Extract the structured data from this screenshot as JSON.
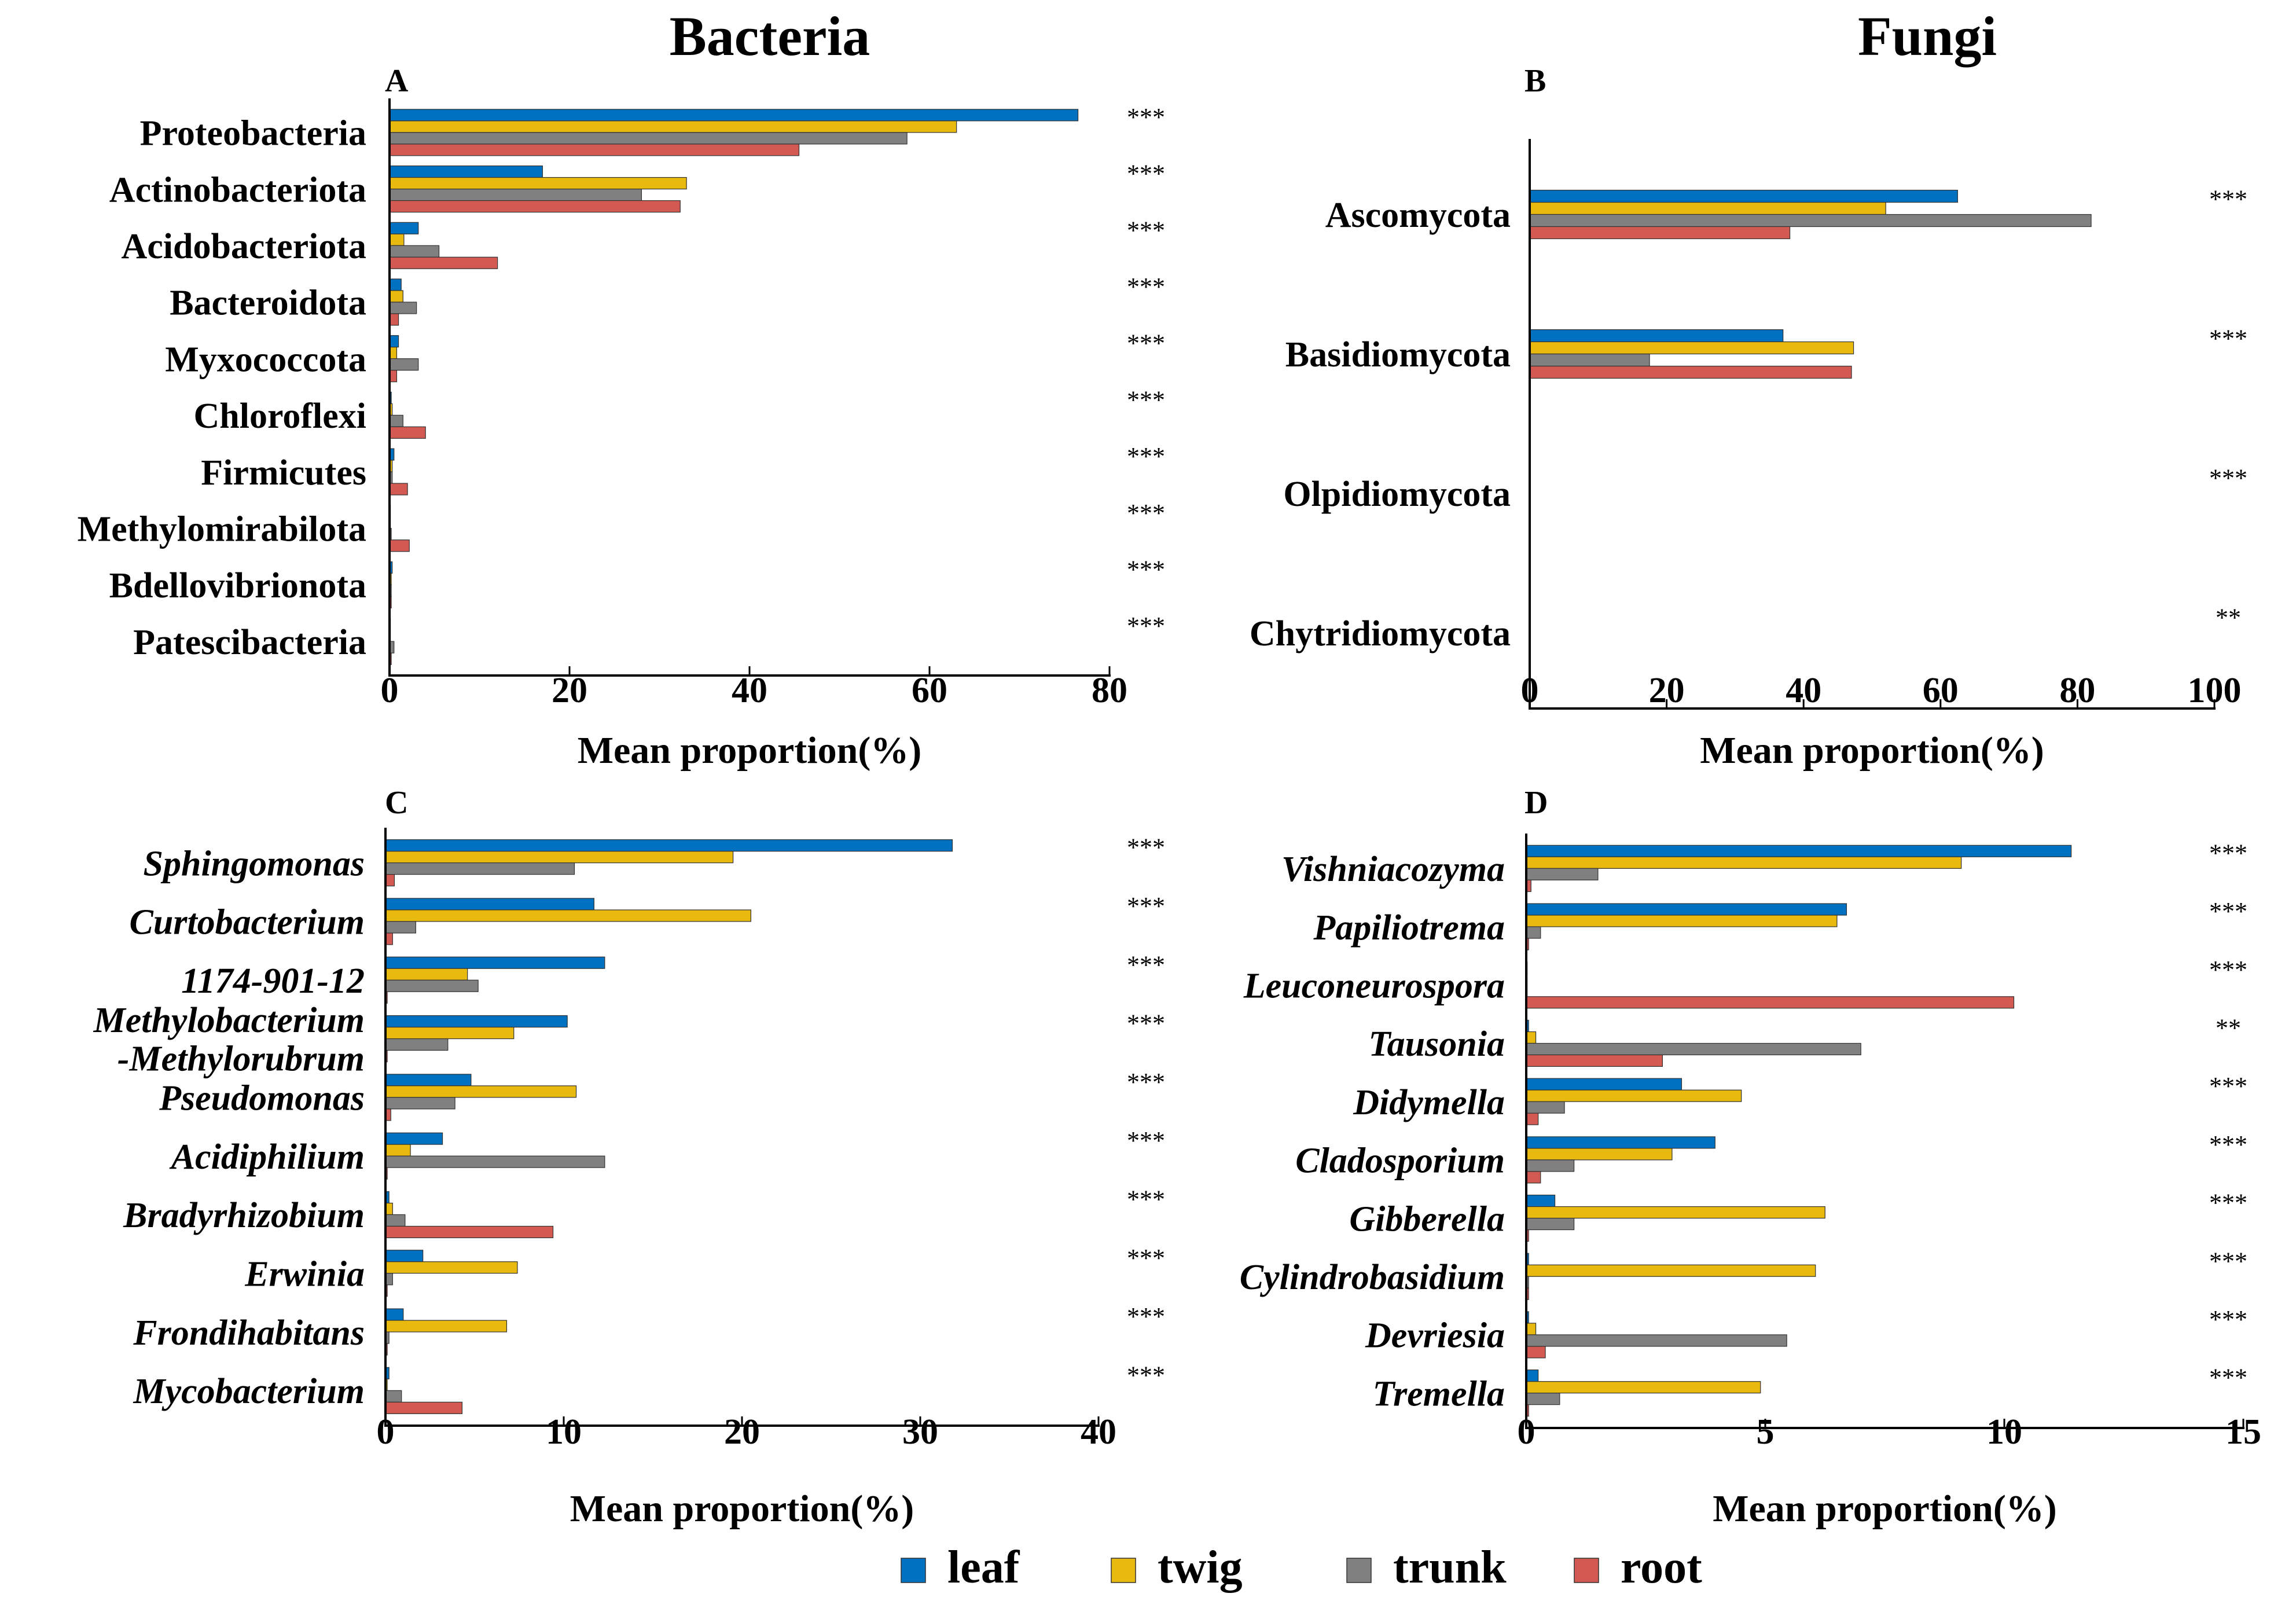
{
  "headers": {
    "bacteria": "Bacteria",
    "fungi": "Fungi"
  },
  "colors": {
    "leaf": "#0070C0",
    "twig": "#E8B90E",
    "trunk": "#808080",
    "root": "#D25A52"
  },
  "legend": [
    {
      "key": "leaf",
      "label": "leaf"
    },
    {
      "key": "twig",
      "label": "twig"
    },
    {
      "key": "trunk",
      "label": "trunk"
    },
    {
      "key": "root",
      "label": "root"
    }
  ],
  "chart_data": [
    {
      "panel": "A",
      "type": "bar",
      "orientation": "horizontal",
      "italic": false,
      "xlabel": "Mean proportion(%)",
      "xlim": [
        0,
        80
      ],
      "xticks": [
        0,
        20,
        40,
        60,
        80
      ],
      "categories": [
        "Proteobacteria",
        "Actinobacteriota",
        "Acidobacteriota",
        "Bacteroidota",
        "Myxococcota",
        "Chloroflexi",
        "Firmicutes",
        "Methylomirabilota",
        "Bdellovibrionota",
        "Patescibacteria"
      ],
      "significance": [
        "***",
        "***",
        "***",
        "***",
        "***",
        "***",
        "***",
        "***",
        "***",
        "***"
      ],
      "series": [
        {
          "name": "leaf",
          "values": [
            76.5,
            17,
            3.2,
            1.3,
            1,
            0.2,
            0.5,
            0.1,
            0.3,
            0.1
          ]
        },
        {
          "name": "twig",
          "values": [
            63,
            33,
            1.6,
            1.5,
            0.8,
            0.3,
            0.3,
            0.1,
            0.2,
            0.1
          ]
        },
        {
          "name": "trunk",
          "values": [
            57.5,
            28,
            5.5,
            3,
            3.2,
            1.5,
            0.3,
            0.2,
            0.2,
            0.5
          ]
        },
        {
          "name": "root",
          "values": [
            45.5,
            32.3,
            12,
            1,
            0.8,
            4,
            2,
            2.2,
            0.2,
            0.2
          ]
        }
      ]
    },
    {
      "panel": "B",
      "type": "bar",
      "orientation": "horizontal",
      "italic": false,
      "xlabel": "Mean proportion(%)",
      "xlim": [
        0,
        100
      ],
      "xticks": [
        0,
        20,
        40,
        60,
        80,
        100
      ],
      "categories": [
        "Ascomycota",
        "Basidiomycota",
        "Olpidiomycota",
        "Chytridiomycota"
      ],
      "significance": [
        "***",
        "***",
        "***",
        "**"
      ],
      "series": [
        {
          "name": "leaf",
          "values": [
            62.5,
            37,
            0,
            0
          ]
        },
        {
          "name": "twig",
          "values": [
            52,
            47.3,
            0,
            0
          ]
        },
        {
          "name": "trunk",
          "values": [
            82,
            17.5,
            0,
            0
          ]
        },
        {
          "name": "root",
          "values": [
            38,
            47,
            0,
            0
          ]
        }
      ]
    },
    {
      "panel": "C",
      "type": "bar",
      "orientation": "horizontal",
      "italic": true,
      "xlabel": "Mean proportion(%)",
      "xlim": [
        0,
        40
      ],
      "xticks": [
        0,
        10,
        20,
        30,
        40
      ],
      "categories": [
        "Sphingomonas",
        "Curtobacterium",
        "1174-901-12",
        "Methylobacterium|-Methylorubrum",
        "Pseudomonas",
        "Acidiphilium",
        "Bradyrhizobium",
        "Erwinia",
        "Frondihabitans",
        "Mycobacterium"
      ],
      "significance": [
        "***",
        "***",
        "***",
        "***",
        "***",
        "***",
        "***",
        "***",
        "***",
        "***"
      ],
      "series": [
        {
          "name": "leaf",
          "values": [
            31.8,
            11.7,
            12.3,
            10.2,
            4.8,
            3.2,
            0.2,
            2.1,
            1,
            0.2
          ]
        },
        {
          "name": "twig",
          "values": [
            19.5,
            20.5,
            4.6,
            7.2,
            10.7,
            1.4,
            0.4,
            7.4,
            6.8,
            0.1
          ]
        },
        {
          "name": "trunk",
          "values": [
            10.6,
            1.7,
            5.2,
            3.5,
            3.9,
            12.3,
            1.1,
            0.4,
            0.2,
            0.9
          ]
        },
        {
          "name": "root",
          "values": [
            0.5,
            0.4,
            0.1,
            0.1,
            0.3,
            0.1,
            9.4,
            0.1,
            0.1,
            4.3
          ]
        }
      ]
    },
    {
      "panel": "D",
      "type": "bar",
      "orientation": "horizontal",
      "italic": true,
      "xlabel": "Mean proportion(%)",
      "xlim": [
        0,
        15
      ],
      "xticks": [
        0,
        5,
        10,
        15
      ],
      "categories": [
        "Vishniacozyma",
        "Papiliotrema",
        "Leuconeurospora",
        "Tausonia",
        "Didymella",
        "Cladosporium",
        "Gibberella",
        "Cylindrobasidium",
        "Devriesia",
        "Tremella"
      ],
      "significance": [
        "***",
        "***",
        "***",
        "**",
        "***",
        "***",
        "***",
        "***",
        "***",
        "***"
      ],
      "series": [
        {
          "name": "leaf",
          "values": [
            11.4,
            6.7,
            0.02,
            0.05,
            3.25,
            3.95,
            0.6,
            0.05,
            0.05,
            0.25
          ]
        },
        {
          "name": "twig",
          "values": [
            9.1,
            6.5,
            0.02,
            0.2,
            4.5,
            3.05,
            6.25,
            6.05,
            0.2,
            4.9
          ]
        },
        {
          "name": "trunk",
          "values": [
            1.5,
            0.3,
            0.02,
            7,
            0.8,
            1,
            1,
            0.05,
            5.45,
            0.7
          ]
        },
        {
          "name": "root",
          "values": [
            0.1,
            0.05,
            10.2,
            2.85,
            0.25,
            0.3,
            0.05,
            0.05,
            0.4,
            0.05
          ]
        }
      ]
    }
  ]
}
